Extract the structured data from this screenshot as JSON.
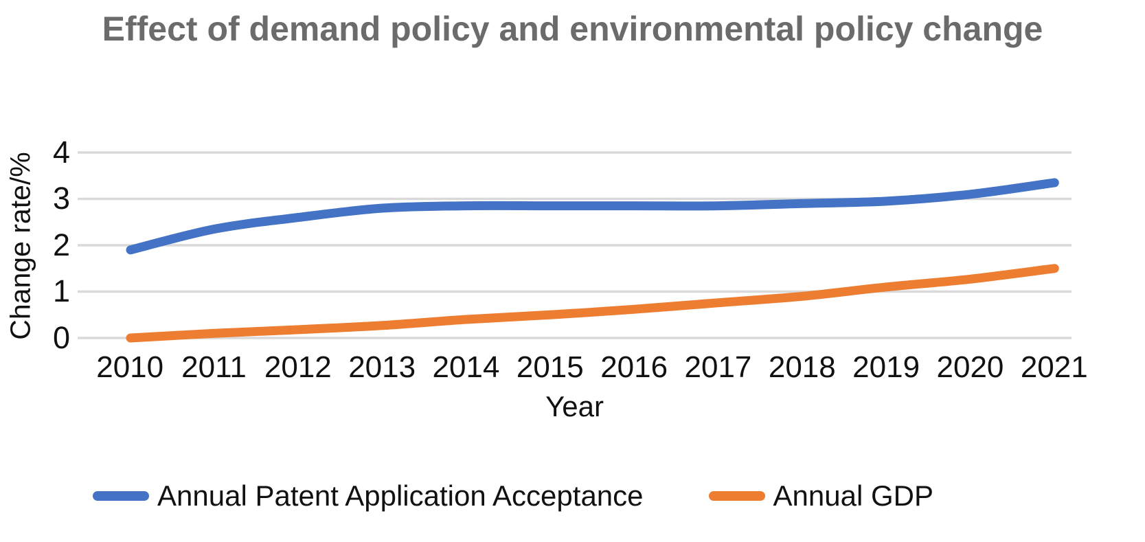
{
  "chart_data": {
    "type": "line",
    "title": "Effect of demand policy and environmental policy change",
    "xlabel": "Year",
    "ylabel": "Change rate/%",
    "categories": [
      "2010",
      "2011",
      "2012",
      "2013",
      "2014",
      "2015",
      "2016",
      "2017",
      "2018",
      "2019",
      "2020",
      "2021"
    ],
    "series": [
      {
        "name": "Annual Patent Application Acceptance",
        "color": "#4472C4",
        "values": [
          1.9,
          2.35,
          2.6,
          2.8,
          2.85,
          2.85,
          2.85,
          2.85,
          2.9,
          2.95,
          3.1,
          3.35
        ]
      },
      {
        "name": "Annual GDP",
        "color": "#ED7D31",
        "values": [
          0.0,
          0.1,
          0.18,
          0.27,
          0.4,
          0.5,
          0.62,
          0.76,
          0.9,
          1.1,
          1.27,
          1.5
        ]
      }
    ],
    "ylim": [
      0,
      4
    ],
    "yticks": [
      0,
      1,
      2,
      3,
      4
    ],
    "grid": true,
    "gridline_color": "#D9D9D9",
    "legend_position": "bottom"
  }
}
